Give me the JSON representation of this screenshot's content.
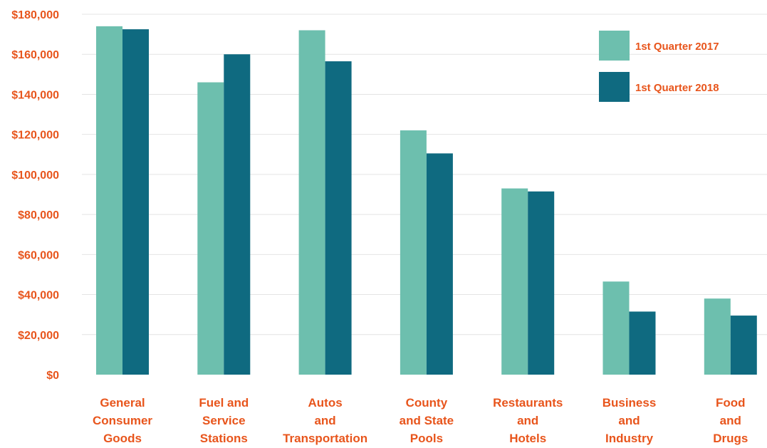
{
  "chart_data": {
    "type": "bar",
    "title": "",
    "xlabel": "",
    "ylabel": "",
    "ylim": [
      0,
      180000
    ],
    "yticks": [
      0,
      20000,
      40000,
      60000,
      80000,
      100000,
      120000,
      140000,
      160000,
      180000
    ],
    "ytick_labels": [
      "$0",
      "$20,000",
      "$40,000",
      "$60,000",
      "$80,000",
      "$100,000",
      "$120,000",
      "$140,000",
      "$160,000",
      "$180,000"
    ],
    "grid": true,
    "legend_position": "top-right",
    "categories": [
      [
        "General",
        "Consumer",
        "Goods"
      ],
      [
        "Fuel and",
        "Service",
        "Stations"
      ],
      [
        "Autos",
        "and",
        "Transportation"
      ],
      [
        "County",
        "and State",
        "Pools"
      ],
      [
        "Restaurants",
        "and",
        "Hotels"
      ],
      [
        "Business",
        "and",
        "Industry"
      ],
      [
        "Food",
        "and",
        "Drugs"
      ]
    ],
    "series": [
      {
        "name": "1st Quarter 2017",
        "color": "#6dbfae",
        "values": [
          174000,
          146000,
          172000,
          122000,
          93000,
          46500,
          38000
        ]
      },
      {
        "name": "1st Quarter 2018",
        "color": "#0f6a80",
        "values": [
          172500,
          160000,
          156500,
          110500,
          91500,
          31500,
          29500
        ]
      }
    ]
  }
}
